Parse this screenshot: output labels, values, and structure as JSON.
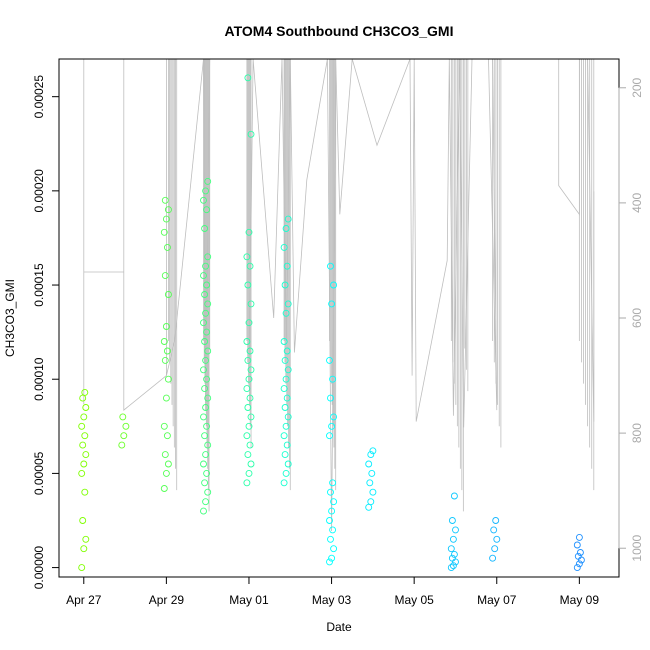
{
  "chart_data": {
    "type": "scatter",
    "title": "ATOM4 Southbound CH3CO3_GMI",
    "xlabel": "Date",
    "ylabel": "CH3CO3_GMI",
    "x_ticks": [
      "Apr 27",
      "Apr 29",
      "May 01",
      "May 03",
      "May 05",
      "May 07",
      "May 09"
    ],
    "y_ticks": [
      "0.00000",
      "0.00005",
      "0.00010",
      "0.00015",
      "0.00020",
      "0.00025"
    ],
    "y_ticks_right": [
      "200",
      "400",
      "600",
      "800",
      "1000"
    ],
    "xlim_days": [
      -0.6,
      12.96
    ],
    "ylim": [
      -5e-06,
      0.00027
    ],
    "y2lim_reversed": [
      1050,
      150
    ],
    "colors": {
      "point_start": "#7fff00",
      "point_end": "#1e90ff",
      "line": "#bebebe",
      "axis": "#000000",
      "right_axis": "#aaaaaa"
    },
    "clusters": [
      {
        "x": 0.0,
        "values": [
          0.0,
          1e-05,
          1.5e-05,
          2.5e-05,
          4e-05,
          5e-05,
          5.5e-05,
          6e-05,
          6.5e-05,
          7e-05,
          7.5e-05,
          8e-05,
          8.5e-05,
          9e-05,
          9.3e-05
        ]
      },
      {
        "x": 0.97,
        "values": [
          6.5e-05,
          7e-05,
          7.5e-05,
          8e-05
        ]
      },
      {
        "x": 2.0,
        "values": [
          4.2e-05,
          5e-05,
          5.5e-05,
          6e-05,
          7e-05,
          7.5e-05,
          9e-05,
          0.0001,
          0.00011,
          0.000115,
          0.00012,
          0.000128,
          0.000145,
          0.000155,
          0.00017,
          0.000178,
          0.000185,
          0.00019,
          0.000195
        ]
      },
      {
        "x": 2.95,
        "values": [
          3e-05,
          3.5e-05,
          4e-05,
          4.5e-05,
          5e-05,
          5.5e-05,
          6e-05,
          6.5e-05,
          7e-05,
          7.5e-05,
          8e-05,
          8.5e-05,
          9e-05,
          9.5e-05,
          0.0001,
          0.000105,
          0.00011,
          0.000115,
          0.00012,
          0.000125,
          0.00013,
          0.000135,
          0.00014,
          0.000145,
          0.00015,
          0.000155,
          0.00016,
          0.000165,
          0.00018,
          0.00019,
          0.000195,
          0.0002,
          0.000205
        ]
      },
      {
        "x": 4.0,
        "values": [
          4.5e-05,
          5e-05,
          5.5e-05,
          6e-05,
          6.5e-05,
          7e-05,
          7.5e-05,
          8e-05,
          8.5e-05,
          9e-05,
          9.5e-05,
          0.0001,
          0.000105,
          0.00011,
          0.000115,
          0.00012,
          0.00013,
          0.00014,
          0.00015,
          0.00016,
          0.000165,
          0.000178,
          0.00023,
          0.00026
        ]
      },
      {
        "x": 4.9,
        "values": [
          4.5e-05,
          5e-05,
          5.5e-05,
          6e-05,
          6.5e-05,
          7e-05,
          7.5e-05,
          8e-05,
          8.5e-05,
          9e-05,
          9.5e-05,
          0.0001,
          0.000105,
          0.00011,
          0.000115,
          0.00012,
          0.000135,
          0.00014,
          0.00015,
          0.00016,
          0.00017,
          0.00018,
          0.000185
        ]
      },
      {
        "x": 6.0,
        "values": [
          3e-06,
          5e-06,
          1e-05,
          1.5e-05,
          2e-05,
          2.5e-05,
          3e-05,
          3.5e-05,
          4e-05,
          4.5e-05,
          7e-05,
          7.5e-05,
          8e-05,
          9e-05,
          0.0001,
          0.00011,
          0.00014,
          0.00015,
          0.00016
        ]
      },
      {
        "x": 6.95,
        "values": [
          3.2e-05,
          3.5e-05,
          4e-05,
          4.5e-05,
          5e-05,
          5.5e-05,
          6e-05,
          6.2e-05
        ]
      },
      {
        "x": 8.95,
        "values": [
          0.0,
          1e-06,
          3e-06,
          5e-06,
          7e-06,
          1e-05,
          1.5e-05,
          2e-05,
          2.5e-05,
          3.8e-05
        ]
      },
      {
        "x": 9.95,
        "values": [
          5e-06,
          1e-05,
          1.5e-05,
          2e-05,
          2.5e-05
        ]
      },
      {
        "x": 12.0,
        "values": [
          0.0,
          2e-06,
          4e-06,
          6e-06,
          8e-06,
          1.2e-05,
          1.6e-05
        ]
      }
    ]
  }
}
